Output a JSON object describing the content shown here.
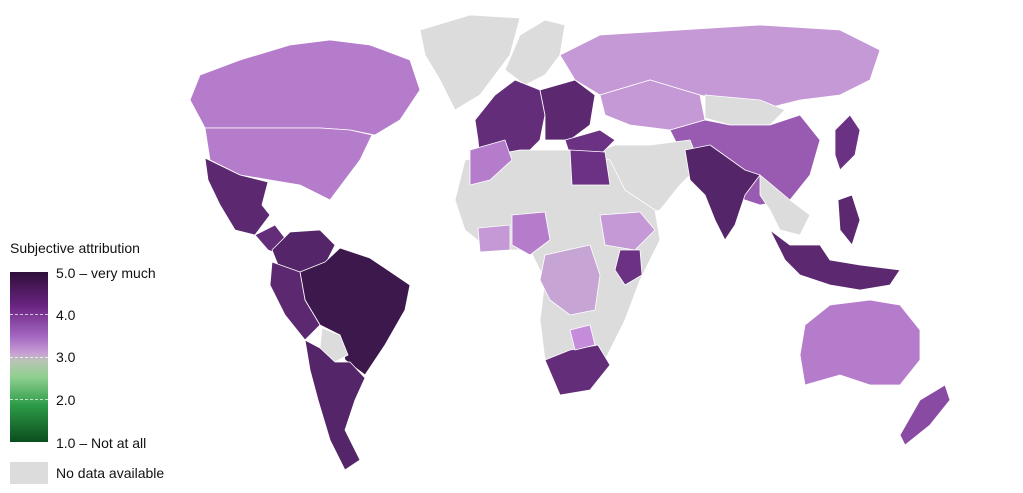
{
  "legend": {
    "title": "Subjective attribution",
    "ticks": [
      "5.0 – very much",
      "4.0",
      "3.0",
      "2.0",
      "1.0 – Not at all"
    ],
    "no_data": "No data available",
    "no_data_color": "#dcdcdc",
    "scale_colors": {
      "1.0": "#0b4d1e",
      "2.0": "#2e9c48",
      "3.0": "#c8c8c8",
      "4.0": "#7a3a95",
      "5.0": "#2e0f3a"
    }
  },
  "regions": [
    {
      "name": "Greenland",
      "value": null
    },
    {
      "name": "Canada",
      "value": 3.6
    },
    {
      "name": "United States",
      "value": 3.6
    },
    {
      "name": "Mexico",
      "value": 4.4
    },
    {
      "name": "Central America",
      "value": 4.3
    },
    {
      "name": "Colombia-Venezuela",
      "value": 4.5
    },
    {
      "name": "Brazil",
      "value": 4.8
    },
    {
      "name": "Peru-Ecuador",
      "value": 4.4
    },
    {
      "name": "Bolivia",
      "value": null
    },
    {
      "name": "Chile-Argentina",
      "value": 4.5
    },
    {
      "name": "Scandinavia",
      "value": null
    },
    {
      "name": "Western Europe",
      "value": 4.3
    },
    {
      "name": "Eastern Europe",
      "value": 4.4
    },
    {
      "name": "Russia",
      "value": 3.4
    },
    {
      "name": "Kazakhstan",
      "value": 3.4
    },
    {
      "name": "Mongolia",
      "value": null
    },
    {
      "name": "China",
      "value": 3.8
    },
    {
      "name": "Japan",
      "value": 4.2
    },
    {
      "name": "Middle East",
      "value": null
    },
    {
      "name": "Turkey",
      "value": 4.2
    },
    {
      "name": "India",
      "value": 4.5
    },
    {
      "name": "Southeast Asia mainland",
      "value": null
    },
    {
      "name": "Malaysia-Indonesia",
      "value": 4.4
    },
    {
      "name": "Philippines",
      "value": 4.4
    },
    {
      "name": "Australia",
      "value": 3.6
    },
    {
      "name": "New Zealand",
      "value": 3.9
    },
    {
      "name": "Africa",
      "value": null
    },
    {
      "name": "Egypt",
      "value": 4.2
    },
    {
      "name": "Morocco",
      "value": 3.6
    },
    {
      "name": "Nigeria",
      "value": 3.6
    },
    {
      "name": "Ghana-Ivory Coast",
      "value": 3.4
    },
    {
      "name": "Ethiopia",
      "value": 3.4
    },
    {
      "name": "Kenya",
      "value": 4.2
    },
    {
      "name": "DR Congo",
      "value": 3.3
    },
    {
      "name": "South Africa",
      "value": 4.3
    },
    {
      "name": "Zimbabwe",
      "value": 3.5
    }
  ]
}
